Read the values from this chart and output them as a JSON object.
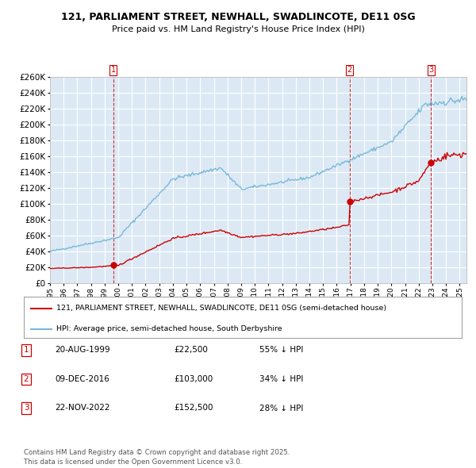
{
  "title": "121, PARLIAMENT STREET, NEWHALL, SWADLINCOTE, DE11 0SG",
  "subtitle": "Price paid vs. HM Land Registry's House Price Index (HPI)",
  "bg_color": "#dce9f5",
  "grid_color": "#ffffff",
  "sale_color": "#cc0000",
  "hpi_color": "#7ab8d9",
  "ylim": [
    0,
    260000
  ],
  "yticks": [
    0,
    20000,
    40000,
    60000,
    80000,
    100000,
    120000,
    140000,
    160000,
    180000,
    200000,
    220000,
    240000,
    260000
  ],
  "sale_dates_num": [
    1999.64,
    2016.94,
    2022.9
  ],
  "sale_prices": [
    22500,
    103000,
    152500
  ],
  "sale_labels": [
    "1",
    "2",
    "3"
  ],
  "legend_sale": "121, PARLIAMENT STREET, NEWHALL, SWADLINCOTE, DE11 0SG (semi-detached house)",
  "legend_hpi": "HPI: Average price, semi-detached house, South Derbyshire",
  "table_rows": [
    [
      "1",
      "20-AUG-1999",
      "£22,500",
      "55% ↓ HPI"
    ],
    [
      "2",
      "09-DEC-2016",
      "£103,000",
      "34% ↓ HPI"
    ],
    [
      "3",
      "22-NOV-2022",
      "£152,500",
      "28% ↓ HPI"
    ]
  ],
  "footer": "Contains HM Land Registry data © Crown copyright and database right 2025.\nThis data is licensed under the Open Government Licence v3.0.",
  "xmin": 1995.0,
  "xmax": 2025.5
}
